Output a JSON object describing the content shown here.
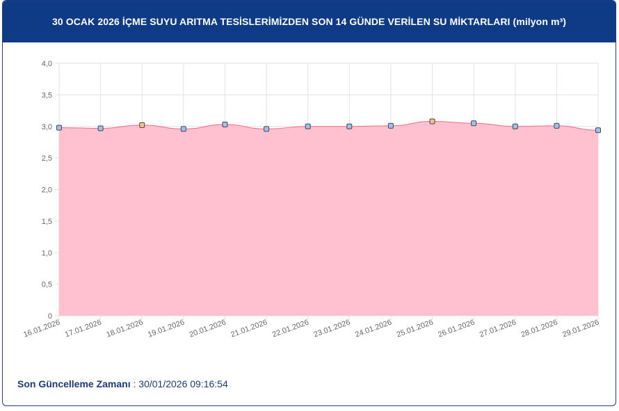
{
  "header": {
    "title": "30 OCAK 2026 İÇME SUYU ARITMA TESİSLERİMİZDEN SON 14 GÜNDE VERİLEN SU MİKTARLARI (milyon m³)"
  },
  "footer": {
    "label": "Son Güncelleme Zamanı",
    "separator": " : ",
    "value": "30/01/2026 09:16:54"
  },
  "colors": {
    "header_bg": "#0f3a85",
    "fill": "#ffc0cf",
    "line": "#ef6b86",
    "marker_fill": "#9fc1ee",
    "marker_stroke": "#444444",
    "marker_highlight_fill": "#f4c28a"
  },
  "chart_data": {
    "type": "area",
    "title": "",
    "xlabel": "",
    "ylabel": "",
    "categories": [
      "16.01.2026",
      "17.01.2026",
      "18.01.2026",
      "19.01.2026",
      "20.01.2026",
      "21.01.2026",
      "22.01.2026",
      "23.01.2026",
      "24.01.2026",
      "25.01.2026",
      "26.01.2026",
      "27.01.2026",
      "28.01.2026",
      "29.01.2026"
    ],
    "values": [
      2.98,
      2.97,
      3.02,
      2.96,
      3.03,
      2.96,
      3.0,
      3.0,
      3.01,
      3.08,
      3.05,
      3.0,
      3.01,
      2.94
    ],
    "ylim": [
      0,
      4.0
    ],
    "yticks": [
      "0",
      "0,5",
      "1,0",
      "1,5",
      "2,0",
      "2,5",
      "3,0",
      "3,5",
      "4,0"
    ],
    "grid": true,
    "legend": "none"
  }
}
